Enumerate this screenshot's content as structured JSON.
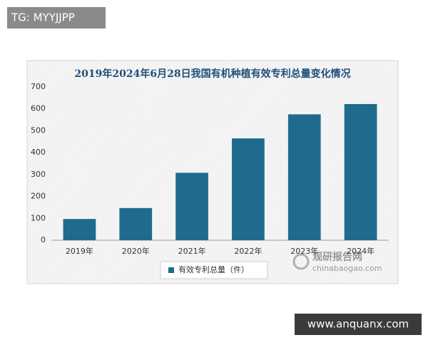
{
  "chart_data": {
    "type": "bar",
    "title": "2019年2024年6月28日我国有机种植有效专利总量变化情况",
    "categories": [
      "2019年",
      "2020年",
      "2021年",
      "2022年",
      "2023年",
      "2024年"
    ],
    "series": [
      {
        "name": "有效专利总量（件）",
        "color": "#1f6b8e",
        "values": [
          97,
          147,
          308,
          465,
          575,
          622
        ]
      }
    ],
    "ylim": [
      0,
      700
    ],
    "yticks": [
      0,
      100,
      200,
      300,
      400,
      500,
      600,
      700
    ],
    "grid": false
  },
  "watermarks": {
    "top_left": "TG: MYYJJPP",
    "bottom_right": "www.anquanx.com",
    "logo_name": "观研报告网",
    "logo_url": "chinabaogao.com"
  }
}
